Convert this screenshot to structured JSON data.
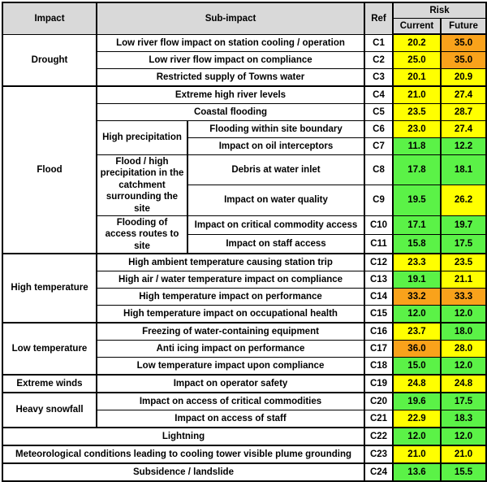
{
  "colors": {
    "green": "#5BF247",
    "yellow": "#FFFF00",
    "orange": "#F9A21B",
    "header_bg": "#D9D9D9",
    "border": "#000000"
  },
  "table": {
    "header": {
      "impact": "Impact",
      "sub_impact": "Sub-impact",
      "ref": "Ref",
      "risk": "Risk",
      "current": "Current",
      "future": "Future"
    },
    "rows": [
      {
        "ref": "C1",
        "impact": {
          "text": "Drought",
          "rowspan": 3
        },
        "sub": {
          "text": "Low river flow impact on station cooling / operation"
        },
        "current": {
          "v": "20.2",
          "c": "yellow"
        },
        "future": {
          "v": "35.0",
          "c": "orange"
        }
      },
      {
        "ref": "C2",
        "sub": {
          "text": "Low river flow impact on compliance"
        },
        "current": {
          "v": "25.0",
          "c": "yellow"
        },
        "future": {
          "v": "35.0",
          "c": "orange"
        }
      },
      {
        "ref": "C3",
        "sub": {
          "text": "Restricted supply of Towns water"
        },
        "current": {
          "v": "20.1",
          "c": "yellow"
        },
        "future": {
          "v": "20.9",
          "c": "yellow"
        }
      },
      {
        "ref": "C4",
        "section": true,
        "impact": {
          "text": "Flood",
          "rowspan": 8
        },
        "sub": {
          "text": "Extreme high river levels"
        },
        "current": {
          "v": "21.0",
          "c": "yellow"
        },
        "future": {
          "v": "27.4",
          "c": "yellow"
        }
      },
      {
        "ref": "C5",
        "sub": {
          "text": "Coastal flooding"
        },
        "current": {
          "v": "23.5",
          "c": "yellow"
        },
        "future": {
          "v": "28.7",
          "c": "yellow"
        }
      },
      {
        "ref": "C6",
        "sub_left": {
          "text": "High precipitation",
          "rowspan": 2
        },
        "sub_right": {
          "text": "Flooding within site boundary"
        },
        "current": {
          "v": "23.0",
          "c": "yellow"
        },
        "future": {
          "v": "27.4",
          "c": "yellow"
        }
      },
      {
        "ref": "C7",
        "sub_right": {
          "text": "Impact on oil interceptors"
        },
        "current": {
          "v": "11.8",
          "c": "green"
        },
        "future": {
          "v": "12.2",
          "c": "green"
        }
      },
      {
        "ref": "C8",
        "sub_left": {
          "text": "Flood / high precipitation in the catchment surrounding the site",
          "rowspan": 2
        },
        "sub_right": {
          "text": "Debris at water inlet"
        },
        "current": {
          "v": "17.8",
          "c": "green"
        },
        "future": {
          "v": "18.1",
          "c": "green"
        }
      },
      {
        "ref": "C9",
        "sub_right": {
          "text": "Impact on water quality"
        },
        "current": {
          "v": "19.5",
          "c": "green"
        },
        "future": {
          "v": "26.2",
          "c": "yellow"
        }
      },
      {
        "ref": "C10",
        "sub_left": {
          "text": "Flooding of access routes to site",
          "rowspan": 2
        },
        "sub_right": {
          "text": "Impact on critical commodity access"
        },
        "current": {
          "v": "17.1",
          "c": "green"
        },
        "future": {
          "v": "19.7",
          "c": "green"
        }
      },
      {
        "ref": "C11",
        "sub_right": {
          "text": "Impact on staff access"
        },
        "current": {
          "v": "15.8",
          "c": "green"
        },
        "future": {
          "v": "17.5",
          "c": "green"
        }
      },
      {
        "ref": "C12",
        "section": true,
        "impact": {
          "text": "High temperature",
          "rowspan": 4
        },
        "sub": {
          "text": "High ambient temperature causing station trip"
        },
        "current": {
          "v": "23.3",
          "c": "yellow"
        },
        "future": {
          "v": "23.5",
          "c": "yellow"
        }
      },
      {
        "ref": "C13",
        "sub": {
          "text": "High air / water temperature impact on compliance"
        },
        "current": {
          "v": "19.1",
          "c": "green"
        },
        "future": {
          "v": "21.1",
          "c": "yellow"
        }
      },
      {
        "ref": "C14",
        "sub": {
          "text": "High temperature impact on performance"
        },
        "current": {
          "v": "33.2",
          "c": "orange"
        },
        "future": {
          "v": "33.3",
          "c": "orange"
        }
      },
      {
        "ref": "C15",
        "sub": {
          "text": "High temperature impact on occupational health"
        },
        "current": {
          "v": "12.0",
          "c": "green"
        },
        "future": {
          "v": "12.0",
          "c": "green"
        }
      },
      {
        "ref": "C16",
        "section": true,
        "impact": {
          "text": "Low temperature",
          "rowspan": 3
        },
        "sub": {
          "text": "Freezing of water-containing equipment"
        },
        "current": {
          "v": "23.7",
          "c": "yellow"
        },
        "future": {
          "v": "18.0",
          "c": "green"
        }
      },
      {
        "ref": "C17",
        "sub": {
          "text": "Anti icing impact on performance"
        },
        "current": {
          "v": "36.0",
          "c": "orange"
        },
        "future": {
          "v": "28.0",
          "c": "yellow"
        }
      },
      {
        "ref": "C18",
        "sub": {
          "text": "Low temperature impact upon compliance"
        },
        "current": {
          "v": "15.0",
          "c": "green"
        },
        "future": {
          "v": "12.0",
          "c": "green"
        }
      },
      {
        "ref": "C19",
        "section": true,
        "impact": {
          "text": "Extreme winds",
          "rowspan": 1
        },
        "sub": {
          "text": "Impact on operator safety"
        },
        "current": {
          "v": "24.8",
          "c": "yellow"
        },
        "future": {
          "v": "24.8",
          "c": "yellow"
        }
      },
      {
        "ref": "C20",
        "section": true,
        "impact": {
          "text": "Heavy snowfall",
          "rowspan": 2
        },
        "sub": {
          "text": "Impact on access of critical commodities"
        },
        "current": {
          "v": "19.6",
          "c": "green"
        },
        "future": {
          "v": "17.5",
          "c": "green"
        }
      },
      {
        "ref": "C21",
        "sub": {
          "text": "Impact on access of staff"
        },
        "current": {
          "v": "22.9",
          "c": "yellow"
        },
        "future": {
          "v": "18.3",
          "c": "green"
        }
      },
      {
        "ref": "C22",
        "section": true,
        "full": {
          "text": "Lightning"
        },
        "current": {
          "v": "12.0",
          "c": "green"
        },
        "future": {
          "v": "12.0",
          "c": "green"
        }
      },
      {
        "ref": "C23",
        "section": true,
        "full": {
          "text": "Meteorological conditions leading to cooling tower visible plume grounding"
        },
        "current": {
          "v": "21.0",
          "c": "yellow"
        },
        "future": {
          "v": "21.0",
          "c": "yellow"
        }
      },
      {
        "ref": "C24",
        "section": true,
        "full": {
          "text": "Subsidence / landslide"
        },
        "current": {
          "v": "13.6",
          "c": "green"
        },
        "future": {
          "v": "15.5",
          "c": "green"
        }
      }
    ]
  }
}
